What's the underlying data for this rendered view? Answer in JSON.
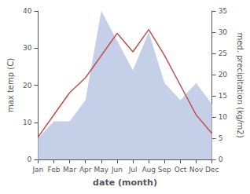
{
  "chart_data": {
    "type": "line",
    "categories": [
      "Jan",
      "Feb",
      "Mar",
      "Apr",
      "May",
      "Jun",
      "Jul",
      "Aug",
      "Sep",
      "Oct",
      "Nov",
      "Dec"
    ],
    "xlabel": "date (month)",
    "ylabel": "max temp (C)",
    "y2label": "med. precipitation (kg/m2)",
    "ylim": [
      0,
      40
    ],
    "yticks": [
      0,
      10,
      20,
      30,
      40
    ],
    "y2lim": [
      0,
      35
    ],
    "y2ticks": [
      0,
      5,
      10,
      15,
      20,
      25,
      30,
      35
    ],
    "grid": false,
    "series": [
      {
        "type": "area",
        "axis": "y2",
        "color": "#c5cfe8",
        "values": [
          5,
          9,
          9,
          14,
          35,
          28,
          21,
          30,
          18,
          14,
          18,
          13
        ]
      },
      {
        "type": "line",
        "color": "#c0504d",
        "values": [
          6,
          12,
          18,
          22,
          28,
          34,
          29,
          35,
          28,
          20,
          12,
          7
        ]
      }
    ]
  }
}
